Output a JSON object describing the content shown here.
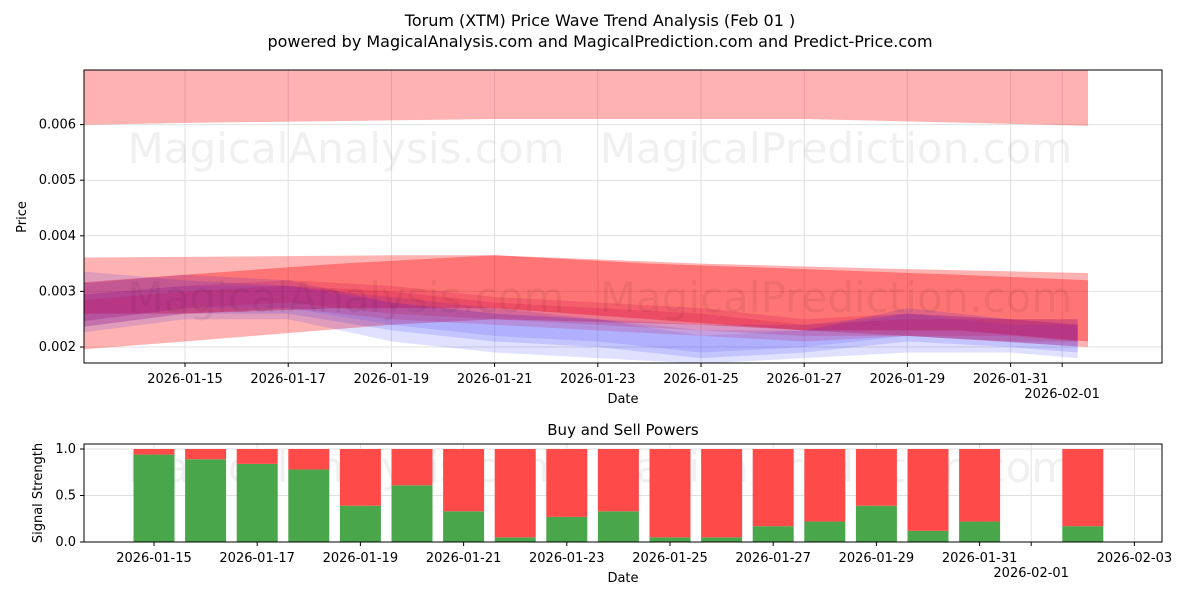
{
  "chart_data": [
    {
      "type": "area",
      "title": "Torum (XTM) Price Wave Trend Analysis (Feb 01 )",
      "subtitle": "powered by MagicalAnalysis.com and MagicalPrediction.com and Predict-Price.com",
      "xlabel": "Date",
      "ylabel": "Price",
      "ylim": [
        0.00172,
        0.007
      ],
      "xlim_day_of_january": [
        11.2,
        32.8
      ],
      "grid": true,
      "yticks": [
        {
          "v": 0.002,
          "label": "0.002"
        },
        {
          "v": 0.003,
          "label": "0.003"
        },
        {
          "v": 0.004,
          "label": "0.004"
        },
        {
          "v": 0.005,
          "label": "0.005"
        },
        {
          "v": 0.006,
          "label": "0.006"
        }
      ],
      "xticks": [
        {
          "d": 15,
          "label": "2026-01-15"
        },
        {
          "d": 17,
          "label": "2026-01-17"
        },
        {
          "d": 19,
          "label": "2026-01-19"
        },
        {
          "d": 21,
          "label": "2026-01-21"
        },
        {
          "d": 23,
          "label": "2026-01-23"
        },
        {
          "d": 25,
          "label": "2026-01-25"
        },
        {
          "d": 27,
          "label": "2026-01-27"
        },
        {
          "d": 29,
          "label": "2026-01-29"
        },
        {
          "d": 31,
          "label": "2026-01-31"
        },
        {
          "d": 32,
          "label": "2026-02-01"
        }
      ],
      "bands_note": "x = day of January 2026 (Feb 1 = 32); values = [upper, lower] price",
      "bands": [
        {
          "color": "#ff0000",
          "alpha": 0.3,
          "points": [
            [
              11.5,
              0.0072,
              0.00597
            ],
            [
              15,
              0.0072,
              0.00603
            ],
            [
              21,
              0.0072,
              0.0061
            ],
            [
              27,
              0.0072,
              0.0061
            ],
            [
              32.5,
              0.0072,
              0.00598
            ]
          ]
        },
        {
          "color": "#ff0000",
          "alpha": 0.3,
          "points": [
            [
              11.5,
              0.0036,
              0.00185
            ],
            [
              15,
              0.00362,
              0.0021
            ],
            [
              19,
              0.00365,
              0.0024
            ],
            [
              21,
              0.00365,
              0.0025
            ],
            [
              25,
              0.0035,
              0.0024
            ],
            [
              29,
              0.0034,
              0.0022
            ],
            [
              32.5,
              0.00333,
              0.002
            ]
          ]
        },
        {
          "color": "#ff0000",
          "alpha": 0.35,
          "points": [
            [
              11.4,
              0.00305,
              0.0026
            ],
            [
              15,
              0.0033,
              0.0026
            ],
            [
              18,
              0.0035,
              0.0027
            ],
            [
              21,
              0.00365,
              0.0027
            ],
            [
              24,
              0.0035,
              0.0025
            ],
            [
              27,
              0.0034,
              0.0023
            ],
            [
              30,
              0.0033,
              0.0023
            ],
            [
              32.5,
              0.0032,
              0.0021
            ]
          ]
        },
        {
          "color": "#0000ff",
          "alpha": 0.12,
          "points": [
            [
              12.5,
              0.0034,
              0.0022
            ],
            [
              15,
              0.0032,
              0.0025
            ],
            [
              17,
              0.0031,
              0.0025
            ],
            [
              19,
              0.0029,
              0.0021
            ],
            [
              21,
              0.0027,
              0.0019
            ],
            [
              23,
              0.0025,
              0.0018
            ],
            [
              25,
              0.0024,
              0.0017
            ],
            [
              27,
              0.0024,
              0.0018
            ],
            [
              29,
              0.0026,
              0.0019
            ],
            [
              31,
              0.0025,
              0.0019
            ],
            [
              32.3,
              0.0025,
              0.0018
            ]
          ]
        },
        {
          "color": "#0000ff",
          "alpha": 0.12,
          "points": [
            [
              12.5,
              0.0031,
              0.0023
            ],
            [
              15,
              0.0033,
              0.0026
            ],
            [
              17,
              0.0032,
              0.0026
            ],
            [
              19,
              0.0028,
              0.0023
            ],
            [
              21,
              0.0026,
              0.0021
            ],
            [
              23,
              0.0025,
              0.002
            ],
            [
              25,
              0.0023,
              0.0018
            ],
            [
              27,
              0.0023,
              0.0019
            ],
            [
              29,
              0.0027,
              0.0021
            ],
            [
              31,
              0.0025,
              0.002
            ],
            [
              32.3,
              0.0024,
              0.0019
            ]
          ]
        },
        {
          "color": "#4040ff",
          "alpha": 0.15,
          "points": [
            [
              12.5,
              0.0029,
              0.0024
            ],
            [
              15,
              0.0031,
              0.0027
            ],
            [
              17,
              0.0031,
              0.0027
            ],
            [
              19,
              0.0028,
              0.0024
            ],
            [
              21,
              0.0026,
              0.0022
            ],
            [
              23,
              0.0025,
              0.0021
            ],
            [
              25,
              0.0022,
              0.0019
            ],
            [
              27,
              0.0023,
              0.002
            ],
            [
              29,
              0.0026,
              0.0022
            ],
            [
              31,
              0.0024,
              0.0021
            ],
            [
              32.3,
              0.0024,
              0.002
            ]
          ]
        },
        {
          "color": "#c8004a",
          "alpha": 0.18,
          "points": [
            [
              12.5,
              0.0029,
              0.0024
            ],
            [
              15,
              0.0031,
              0.0027
            ],
            [
              17,
              0.0032,
              0.0028
            ],
            [
              19,
              0.0031,
              0.0026
            ],
            [
              21,
              0.0029,
              0.0025
            ],
            [
              23,
              0.0028,
              0.0024
            ],
            [
              25,
              0.0027,
              0.0023
            ],
            [
              27,
              0.0025,
              0.0022
            ],
            [
              29,
              0.0026,
              0.0022
            ],
            [
              31,
              0.0025,
              0.0022
            ],
            [
              32.3,
              0.0025,
              0.0021
            ]
          ]
        },
        {
          "color": "#c8004a",
          "alpha": 0.18,
          "points": [
            [
              12.5,
              0.0028,
              0.0023
            ],
            [
              15,
              0.003,
              0.0026
            ],
            [
              17,
              0.0031,
              0.0027
            ],
            [
              19,
              0.003,
              0.0025
            ],
            [
              21,
              0.0028,
              0.0024
            ],
            [
              23,
              0.0027,
              0.0023
            ],
            [
              25,
              0.0026,
              0.0022
            ],
            [
              27,
              0.0024,
              0.0021
            ],
            [
              29,
              0.0025,
              0.0022
            ],
            [
              31,
              0.0025,
              0.0021
            ],
            [
              32.3,
              0.0024,
              0.0021
            ]
          ]
        }
      ],
      "watermarks": [
        "MagicalAnalysis.com",
        "MagicalPrediction.com"
      ]
    },
    {
      "type": "bar",
      "title": "Buy and Sell Powers",
      "xlabel": "Date",
      "ylabel": "Signal Strength",
      "ylim": [
        0,
        1.05
      ],
      "yticks": [
        {
          "v": 0,
          "label": "0.0"
        },
        {
          "v": 0.5,
          "label": "0.5"
        },
        {
          "v": 1,
          "label": "1.0"
        }
      ],
      "xticks": [
        {
          "d": 15,
          "label": "2026-01-15"
        },
        {
          "d": 17,
          "label": "2026-01-17"
        },
        {
          "d": 19,
          "label": "2026-01-19"
        },
        {
          "d": 21,
          "label": "2026-01-21"
        },
        {
          "d": 23,
          "label": "2026-01-23"
        },
        {
          "d": 25,
          "label": "2026-01-25"
        },
        {
          "d": 27,
          "label": "2026-01-27"
        },
        {
          "d": 29,
          "label": "2026-01-29"
        },
        {
          "d": 31,
          "label": "2026-01-31"
        },
        {
          "d": 32,
          "label": "2026-02-01"
        },
        {
          "d": 34,
          "label": "2026-02-03"
        }
      ],
      "days": [
        15,
        16,
        17,
        18,
        19,
        20,
        21,
        22,
        23,
        24,
        25,
        26,
        27,
        28,
        29,
        30,
        31,
        33
      ],
      "series": [
        {
          "name": "Buy",
          "color": "#4aa64a",
          "values": [
            0.94,
            0.89,
            0.84,
            0.78,
            0.39,
            0.61,
            0.33,
            0.05,
            0.27,
            0.33,
            0.05,
            0.05,
            0.17,
            0.22,
            0.39,
            0.12,
            0.22,
            0.17
          ]
        },
        {
          "name": "Sell",
          "color": "#ff4a4a",
          "values": [
            0.06,
            0.11,
            0.16,
            0.22,
            0.61,
            0.39,
            0.67,
            0.95,
            0.73,
            0.67,
            0.95,
            0.95,
            0.83,
            0.78,
            0.61,
            0.88,
            0.78,
            0.83
          ]
        }
      ]
    }
  ]
}
